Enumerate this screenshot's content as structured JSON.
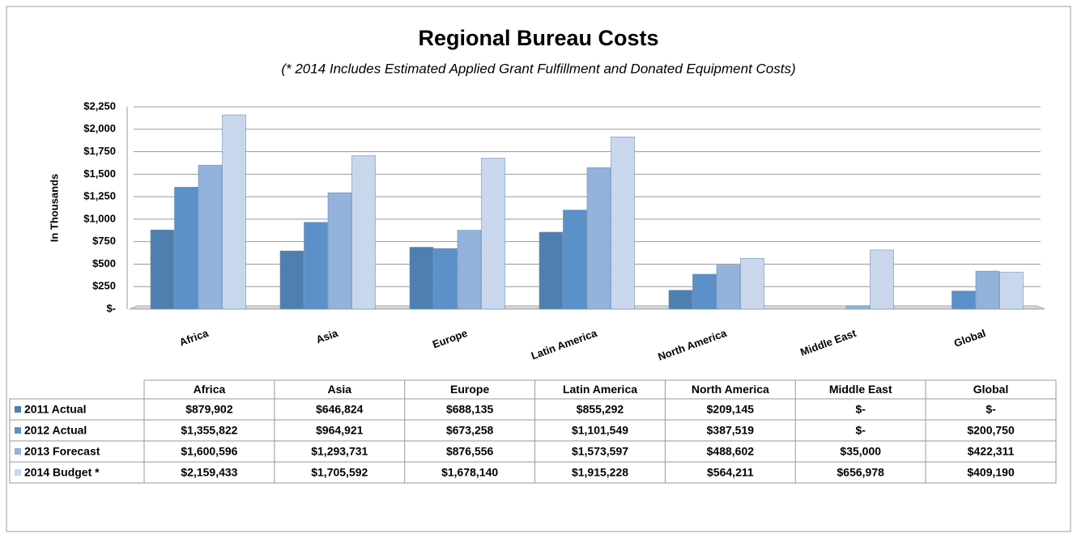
{
  "chart_data": {
    "type": "bar",
    "title": "Regional Bureau Costs",
    "subtitle": "(* 2014 Includes Estimated Applied Grant Fulfillment and Donated Equipment Costs)",
    "y_label": "In Thousands",
    "categories": [
      "Africa",
      "Asia",
      "Europe",
      "Latin America",
      "North America",
      "Middle East",
      "Global"
    ],
    "series": [
      {
        "name": "2011 Actual",
        "color": "#4f7fae",
        "values": [
          879.902,
          646.824,
          688.135,
          855.292,
          209.145,
          0,
          0
        ],
        "value_labels": [
          "$879,902",
          "$646,824",
          "$688,135",
          "$855,292",
          "$209,145",
          "$-",
          "$-"
        ]
      },
      {
        "name": "2012 Actual",
        "color": "#5b90c9",
        "values": [
          1355.822,
          964.921,
          673.258,
          1101.549,
          387.519,
          0,
          200.75
        ],
        "value_labels": [
          "$1,355,822",
          "$964,921",
          "$673,258",
          "$1,101,549",
          "$387,519",
          "$-",
          "$200,750"
        ]
      },
      {
        "name": "2013 Forecast",
        "color": "#93b3dc",
        "values": [
          1600.596,
          1293.731,
          876.556,
          1573.597,
          488.602,
          35,
          422.311
        ],
        "value_labels": [
          "$1,600,596",
          "$1,293,731",
          "$876,556",
          "$1,573,597",
          "$488,602",
          "$35,000",
          "$422,311"
        ]
      },
      {
        "name": "2014 Budget *",
        "color": "#c9d7ec",
        "values": [
          2159.433,
          1705.592,
          1678.14,
          1915.228,
          564.211,
          656.978,
          409.19
        ],
        "value_labels": [
          "$2,159,433",
          "$1,705,592",
          "$1,678,140",
          "$1,915,228",
          "$564,211",
          "$656,978",
          "$409,190"
        ]
      }
    ],
    "ylim": [
      0,
      2250
    ],
    "yticks": [
      {
        "value": 0,
        "label": "$-"
      },
      {
        "value": 250,
        "label": "$250"
      },
      {
        "value": 500,
        "label": "$500"
      },
      {
        "value": 750,
        "label": "$750"
      },
      {
        "value": 1000,
        "label": "$1,000"
      },
      {
        "value": 1250,
        "label": "$1,250"
      },
      {
        "value": 1500,
        "label": "$1,500"
      },
      {
        "value": 1750,
        "label": "$1,750"
      },
      {
        "value": 2000,
        "label": "$2,000"
      },
      {
        "value": 2250,
        "label": "$2,250"
      }
    ],
    "grid": true
  }
}
